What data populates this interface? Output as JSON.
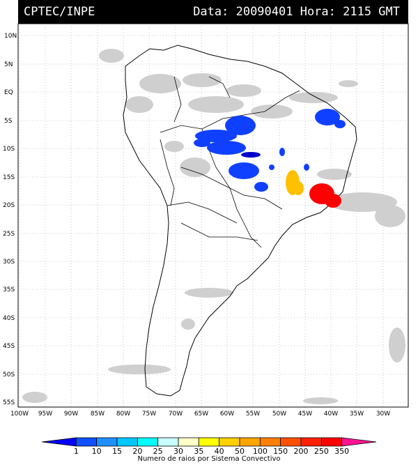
{
  "header": {
    "source": "CPTEC/INPE",
    "datetime": "Data: 20090401 Hora: 2115 GMT"
  },
  "map": {
    "lat_ticks": [
      "10N",
      "5N",
      "EQ",
      "5S",
      "10S",
      "15S",
      "20S",
      "25S",
      "30S",
      "35S",
      "40S",
      "45S",
      "50S",
      "55S"
    ],
    "lon_ticks": [
      "100W",
      "95W",
      "90W",
      "85W",
      "80W",
      "75W",
      "70W",
      "65W",
      "60W",
      "55W",
      "50W",
      "45W",
      "40W",
      "35W",
      "30W"
    ],
    "cloud_color": "#c8c8c8",
    "land_outline_color": "#000000",
    "grid": "dotted"
  },
  "colorbar": {
    "title": "Numero de raios por Sistema Convectivo",
    "labels": [
      "1",
      "10",
      "15",
      "20",
      "25",
      "30",
      "35",
      "40",
      "50",
      "100",
      "150",
      "200",
      "250",
      "350"
    ],
    "colors": [
      "#0000ff",
      "#1050ff",
      "#1e90ff",
      "#00c8ff",
      "#00ffff",
      "#c8ffff",
      "#ffffc8",
      "#ffff00",
      "#ffd000",
      "#ffa500",
      "#ff8000",
      "#ff5000",
      "#ff2000",
      "#ff0000",
      "#ff1493"
    ]
  },
  "convective_systems": [
    {
      "name": "amazon-systems",
      "color": "#0000ff"
    },
    {
      "name": "northeast-system",
      "color": "#0000ff"
    },
    {
      "name": "central-brazil-system",
      "color": "#ffc000"
    },
    {
      "name": "southeast-brazil-system",
      "color": "#ff0000"
    }
  ]
}
